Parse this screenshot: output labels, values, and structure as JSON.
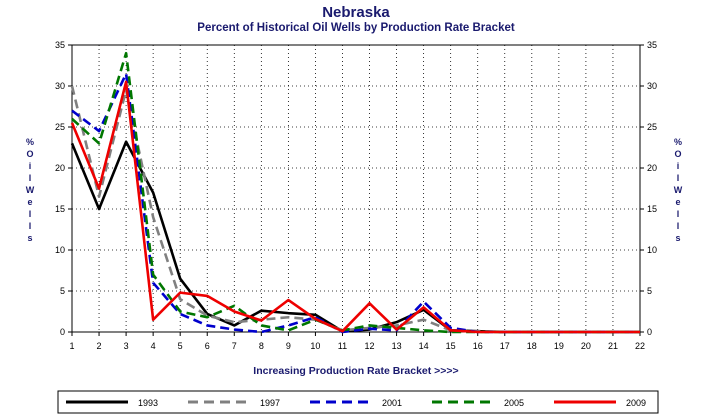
{
  "chart_data": {
    "type": "line",
    "title": "Nebraska",
    "subtitle": "Percent of Historical Oil Wells by Production Rate Bracket",
    "xlabel": "Increasing Production Rate Bracket >>>>",
    "ylabel": "% Oil Wells",
    "x": [
      1,
      2,
      3,
      4,
      5,
      6,
      7,
      8,
      9,
      10,
      11,
      12,
      13,
      14,
      15,
      16,
      17,
      18,
      19,
      20,
      21,
      22
    ],
    "xlim": [
      1,
      22
    ],
    "ylim": [
      0,
      35
    ],
    "yticks": [
      0,
      5,
      10,
      15,
      20,
      25,
      30,
      35
    ],
    "grid": true,
    "legend_position": "bottom",
    "series": [
      {
        "name": "1993",
        "color": "#000000",
        "dash": "solid",
        "values": [
          23.0,
          15.0,
          23.2,
          17.0,
          6.5,
          2.2,
          0.8,
          2.6,
          2.3,
          2.1,
          0.1,
          0.3,
          1.2,
          2.7,
          0.2,
          0.1,
          0,
          0,
          0,
          0,
          0,
          0
        ]
      },
      {
        "name": "1997",
        "color": "#808080",
        "dash": "dashed",
        "values": [
          30.0,
          16.5,
          29.5,
          14.0,
          4.0,
          2.0,
          1.2,
          1.5,
          1.8,
          1.5,
          0.2,
          0.5,
          0.8,
          1.5,
          0.2,
          0.1,
          0,
          0,
          0,
          0,
          0,
          0
        ]
      },
      {
        "name": "2001",
        "color": "#0000cc",
        "dash": "dashed",
        "values": [
          27.0,
          24.5,
          31.5,
          6.0,
          2.2,
          0.8,
          0.3,
          0.0,
          0.8,
          1.8,
          0.0,
          0.4,
          0.2,
          3.7,
          0.5,
          0.0,
          0,
          0,
          0,
          0,
          0,
          0
        ]
      },
      {
        "name": "2005",
        "color": "#007700",
        "dash": "dashed",
        "values": [
          26.0,
          23.0,
          34.0,
          7.0,
          2.5,
          1.8,
          3.2,
          0.8,
          0.2,
          1.5,
          0.2,
          0.8,
          0.5,
          0.2,
          0.0,
          0.0,
          0,
          0,
          0,
          0,
          0,
          0
        ]
      },
      {
        "name": "2009",
        "color": "#ee0000",
        "dash": "solid",
        "values": [
          25.5,
          17.5,
          30.5,
          1.5,
          4.8,
          4.4,
          2.5,
          1.4,
          3.9,
          1.6,
          0.1,
          3.5,
          0.3,
          3.0,
          0.2,
          0.0,
          0,
          0,
          0,
          0,
          0,
          0
        ]
      }
    ]
  }
}
